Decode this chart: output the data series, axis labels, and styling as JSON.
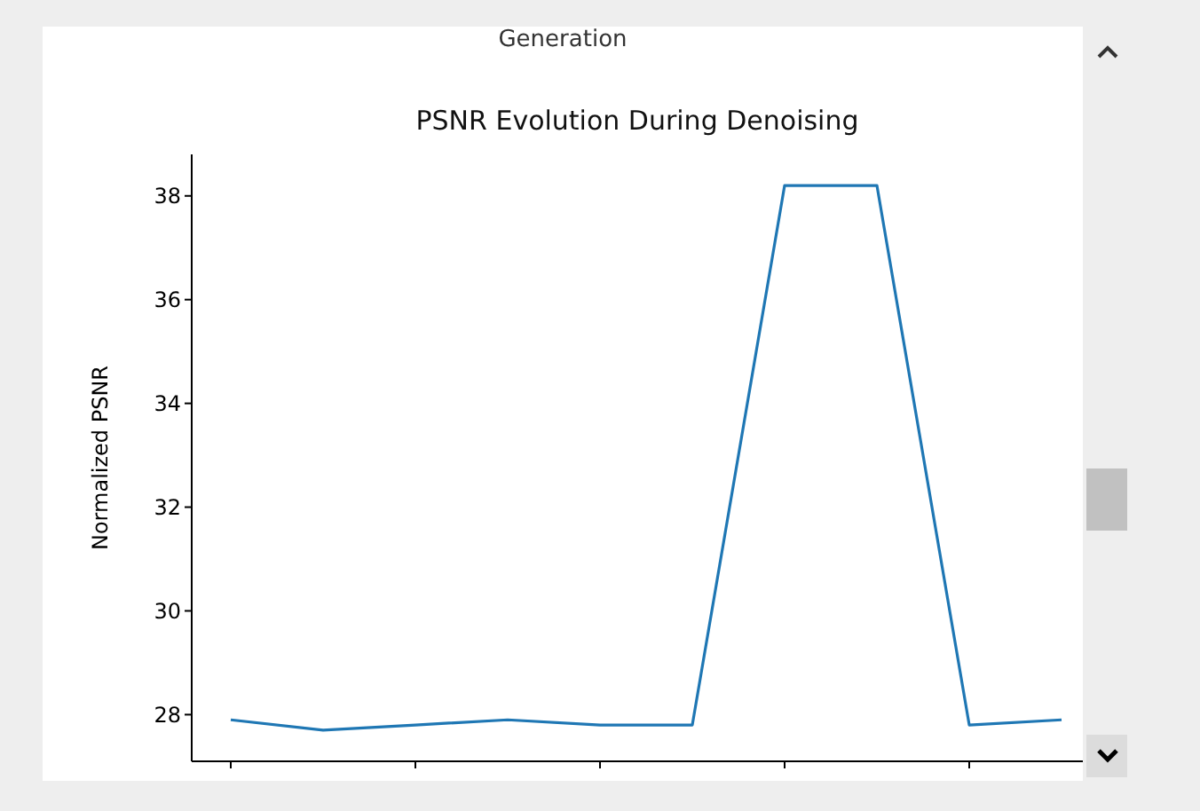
{
  "chart_data": {
    "type": "line",
    "title": "PSNR Evolution During Denoising",
    "ylabel": "Normalized PSNR",
    "annotations": [
      "Generation"
    ],
    "categories": [
      null,
      null,
      null,
      null,
      null,
      null,
      null,
      null,
      null,
      null
    ],
    "series": [
      {
        "color": "#1f77b4",
        "values": [
          27.9,
          27.7,
          27.8,
          27.9,
          27.8,
          27.8,
          38.2,
          38.2,
          27.8,
          27.9
        ]
      }
    ],
    "ylim": [
      27.1,
      38.8
    ],
    "yticks": [
      28,
      30,
      32,
      34,
      36,
      38
    ],
    "tick_labels": "y",
    "grid": false,
    "legend": false,
    "marker": "none",
    "line_style": "solid"
  }
}
